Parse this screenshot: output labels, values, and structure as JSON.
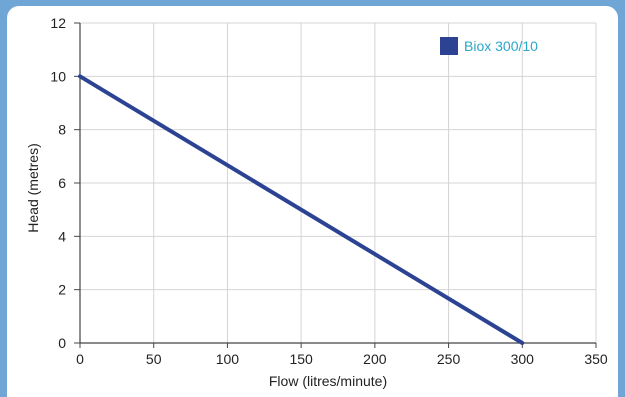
{
  "chart_data": {
    "type": "line",
    "xlabel": "Flow (litres/minute)",
    "ylabel": "Head (metres)",
    "xlim": [
      0,
      350
    ],
    "ylim": [
      0,
      12
    ],
    "x_ticks": [
      0,
      50,
      100,
      150,
      200,
      250,
      300,
      350
    ],
    "y_ticks": [
      0,
      2,
      4,
      6,
      8,
      10,
      12
    ],
    "grid": true,
    "legend_position": "top-right",
    "series": [
      {
        "name": "Biox 300/10",
        "color": "#2b4392",
        "x": [
          0,
          300
        ],
        "y": [
          10,
          0
        ]
      }
    ]
  },
  "colors": {
    "frame": "#6fa6d6",
    "grid": "#d4d4d4",
    "legend_text": "#2aa7c9"
  }
}
